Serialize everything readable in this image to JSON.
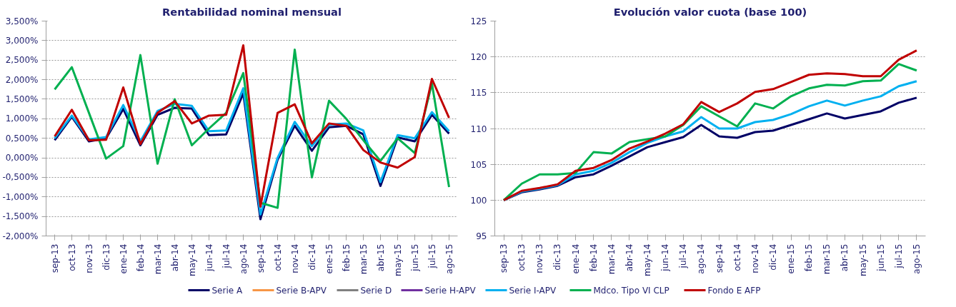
{
  "chart_data": [
    {
      "type": "line",
      "title": "Rentabilidad nominal mensual",
      "categories": [
        "sep-13",
        "oct-13",
        "nov-13",
        "dic-13",
        "ene-14",
        "feb-14",
        "mar-14",
        "abr-14",
        "may-14",
        "jun-14",
        "jul-14",
        "ago-14",
        "sep-14",
        "oct-14",
        "nov-14",
        "dic-14",
        "ene-15",
        "feb-15",
        "mar-15",
        "abr-15",
        "may-15",
        "jun-15",
        "jul-15",
        "ago-15"
      ],
      "ylim": [
        -2,
        3.5
      ],
      "yticks": [
        {
          "value": -2,
          "label": "-2,000%"
        },
        {
          "value": -1.5,
          "label": "-1,500%"
        },
        {
          "value": -1,
          "label": "-1,000%"
        },
        {
          "value": -0.5,
          "label": "-0,500%"
        },
        {
          "value": 0,
          "label": "0,000%"
        },
        {
          "value": 0.5,
          "label": "0,500%"
        },
        {
          "value": 1,
          "label": "1,000%"
        },
        {
          "value": 1.5,
          "label": "1,500%"
        },
        {
          "value": 2,
          "label": "2,000%"
        },
        {
          "value": 2.5,
          "label": "2,500%"
        },
        {
          "value": 3,
          "label": "3,000%"
        },
        {
          "value": 3.5,
          "label": "3,500%"
        }
      ],
      "grid": "y",
      "legend": "bottom",
      "series": [
        {
          "name": "Serie A",
          "color": "#000066",
          "values": [
            0.45,
            1.05,
            0.42,
            0.5,
            1.25,
            0.32,
            1.1,
            1.28,
            1.26,
            0.58,
            0.6,
            1.65,
            -1.57,
            -0.05,
            0.82,
            0.18,
            0.78,
            0.82,
            0.6,
            -0.72,
            0.52,
            0.42,
            1.1,
            0.62
          ]
        },
        {
          "name": "Serie B-APV",
          "color": "#f79646",
          "values": [
            null,
            null,
            null,
            null,
            null,
            null,
            null,
            null,
            null,
            null,
            null,
            null,
            null,
            null,
            null,
            null,
            null,
            null,
            null,
            null,
            null,
            null,
            null,
            null
          ]
        },
        {
          "name": "Serie D",
          "color": "#808080",
          "values": [
            null,
            null,
            null,
            null,
            null,
            null,
            null,
            null,
            null,
            null,
            null,
            null,
            null,
            null,
            null,
            null,
            null,
            null,
            null,
            null,
            null,
            null,
            null,
            null
          ]
        },
        {
          "name": "Serie H-APV",
          "color": "#7030a0",
          "values": [
            null,
            null,
            null,
            null,
            null,
            null,
            null,
            null,
            null,
            null,
            null,
            null,
            null,
            null,
            null,
            null,
            null,
            null,
            null,
            null,
            null,
            null,
            null,
            null
          ]
        },
        {
          "name": "Serie I-APV",
          "color": "#00b0f0",
          "values": [
            0.5,
            1.08,
            0.47,
            0.53,
            1.35,
            0.42,
            1.2,
            1.38,
            1.33,
            0.68,
            0.7,
            1.78,
            -1.45,
            0.0,
            0.92,
            0.3,
            0.85,
            0.88,
            0.7,
            -0.62,
            0.58,
            0.5,
            1.17,
            0.68
          ]
        },
        {
          "name": "Mdco. Tipo VI CLP",
          "color": "#00b050",
          "values": [
            1.75,
            2.32,
            1.15,
            -0.02,
            0.3,
            2.63,
            -0.15,
            1.5,
            0.32,
            0.75,
            1.15,
            2.17,
            -1.15,
            -1.28,
            2.77,
            -0.5,
            1.46,
            1.0,
            0.45,
            -0.08,
            0.5,
            0.12,
            1.9,
            -0.75
          ]
        },
        {
          "name": "Fondo E AFP",
          "color": "#c00000",
          "values": [
            0.55,
            1.23,
            0.45,
            0.46,
            1.8,
            0.35,
            1.15,
            1.45,
            0.88,
            1.08,
            1.1,
            2.88,
            -1.25,
            1.15,
            1.37,
            0.37,
            0.88,
            0.82,
            0.2,
            -0.12,
            -0.25,
            0.02,
            2.02,
            1.02
          ]
        }
      ]
    },
    {
      "type": "line",
      "title": "Evolución valor cuota (base 100)",
      "categories": [
        "sep-13",
        "oct-13",
        "nov-13",
        "dic-13",
        "ene-14",
        "feb-14",
        "mar-14",
        "abr-14",
        "may-14",
        "jun-14",
        "jul-14",
        "ago-14",
        "sep-14",
        "oct-14",
        "nov-14",
        "dic-14",
        "ene-15",
        "feb-15",
        "mar-15",
        "abr-15",
        "may-15",
        "jun-15",
        "jul-15",
        "ago-15"
      ],
      "ylim": [
        95,
        125
      ],
      "yticks": [
        95,
        100,
        105,
        110,
        115,
        120,
        125
      ],
      "grid": "y",
      "series": [
        {
          "color": "#000066",
          "values": [
            100,
            101.1,
            101.5,
            102.0,
            103.2,
            103.6,
            104.8,
            106.1,
            107.4,
            108.1,
            108.8,
            110.5,
            108.9,
            108.7,
            109.5,
            109.7,
            110.5,
            111.3,
            112.1,
            111.4,
            111.9,
            112.4,
            113.6,
            114.3
          ]
        },
        {
          "color": "#f79646",
          "values": [
            null,
            null,
            null,
            null,
            null,
            null,
            null,
            null,
            null,
            null,
            null,
            null,
            null,
            null,
            null,
            null,
            null,
            null,
            null,
            null,
            null,
            null,
            null,
            null
          ]
        },
        {
          "color": "#808080",
          "values": [
            null,
            null,
            null,
            null,
            null,
            null,
            null,
            null,
            null,
            null,
            null,
            null,
            null,
            null,
            null,
            null,
            null,
            null,
            null,
            null,
            null,
            null,
            null,
            null
          ]
        },
        {
          "color": "#7030a0",
          "values": [
            null,
            null,
            null,
            null,
            null,
            null,
            null,
            null,
            null,
            null,
            null,
            null,
            null,
            null,
            null,
            null,
            null,
            null,
            null,
            null,
            null,
            null,
            null,
            null
          ]
        },
        {
          "color": "#00b0f0",
          "values": [
            100,
            101.2,
            101.6,
            102.1,
            103.6,
            104.1,
            105.2,
            106.7,
            108.0,
            108.9,
            109.6,
            111.6,
            110.0,
            110.0,
            110.9,
            111.2,
            112.0,
            113.1,
            113.9,
            113.2,
            113.9,
            114.5,
            115.9,
            116.6
          ]
        },
        {
          "color": "#00b050",
          "values": [
            100,
            102.3,
            103.6,
            103.6,
            103.8,
            106.7,
            106.5,
            108.1,
            108.5,
            108.9,
            110.5,
            113.1,
            111.7,
            110.3,
            113.5,
            112.8,
            114.5,
            115.6,
            116.1,
            116.0,
            116.6,
            116.7,
            119.0,
            118.1
          ]
        },
        {
          "color": "#c00000",
          "values": [
            100,
            101.3,
            101.7,
            102.2,
            104.1,
            104.5,
            105.6,
            107.2,
            108.2,
            109.3,
            110.6,
            113.7,
            112.3,
            113.5,
            115.1,
            115.5,
            116.5,
            117.5,
            117.7,
            117.6,
            117.3,
            117.3,
            119.6,
            120.9
          ]
        }
      ]
    }
  ]
}
